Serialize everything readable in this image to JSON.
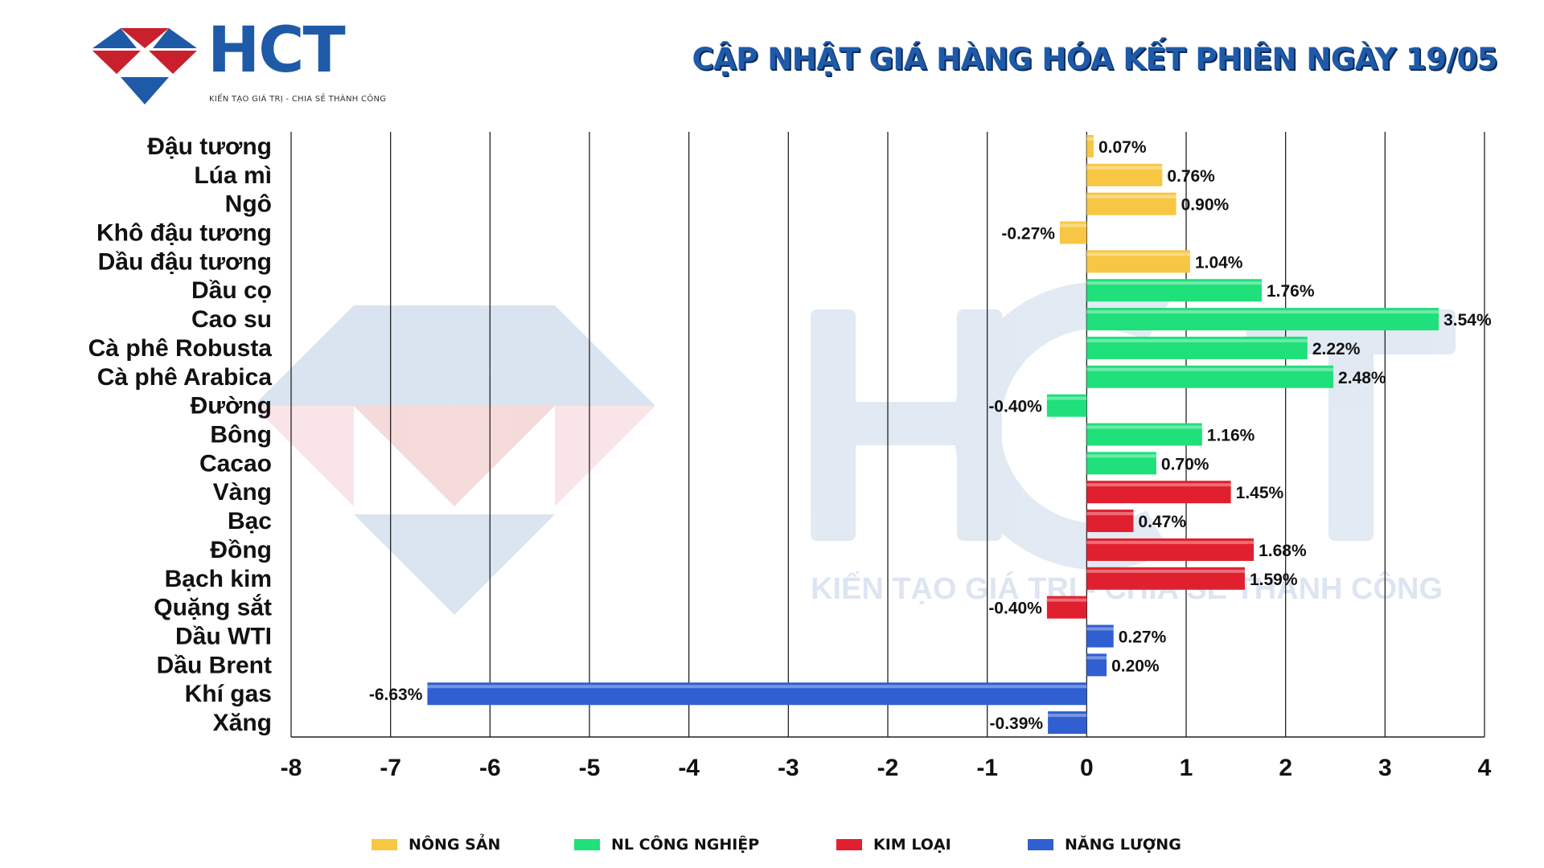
{
  "header": {
    "logo_text": "HCT",
    "logo_slogan": "KIẾN TẠO GIÁ TRỊ - CHIA SẺ THÀNH CÔNG",
    "title": "CẬP NHẬT GIÁ HÀNG HÓA KẾT PHIÊN NGÀY 19/05"
  },
  "watermark": {
    "text": "KIẾN TẠO GIÁ TRỊ - CHIA SẺ THÀNH CÔNG"
  },
  "colors": {
    "nong_san": "#f7c744",
    "nl_cong_nghiep": "#1fe07a",
    "kim_loai": "#e0202e",
    "nang_luong": "#2f5fd0",
    "brand_blue": "#1e5aa8",
    "brand_red": "#c8202c"
  },
  "chart_data": {
    "type": "bar",
    "orientation": "horizontal",
    "title": "CẬP NHẬT GIÁ HÀNG HÓA KẾT PHIÊN NGÀY 19/05",
    "xlim": [
      -8,
      4
    ],
    "xticks": [
      -8,
      -7,
      -6,
      -5,
      -4,
      -3,
      -2,
      -1,
      0,
      1,
      2,
      3,
      4
    ],
    "grid": "vertical",
    "legend_position": "bottom",
    "categories": [
      "Đậu tương",
      "Lúa mì",
      "Ngô",
      "Khô đậu tương",
      "Dầu đậu tương",
      "Dầu cọ",
      "Cao su",
      "Cà phê Robusta",
      "Cà phê Arabica",
      "Đường",
      "Bông",
      "Cacao",
      "Vàng",
      "Bạc",
      "Đồng",
      "Bạch kim",
      "Quặng sắt",
      "Dầu WTI",
      "Dầu Brent",
      "Khí gas",
      "Xăng"
    ],
    "values": [
      0.07,
      0.76,
      0.9,
      -0.27,
      1.04,
      1.76,
      3.54,
      2.22,
      2.48,
      -0.4,
      1.16,
      0.7,
      1.45,
      0.47,
      1.68,
      1.59,
      -0.4,
      0.27,
      0.2,
      -6.63,
      -0.39
    ],
    "labels": [
      "0.07%",
      "0.76%",
      "0.90%",
      "-0.27%",
      "1.04%",
      "1.76%",
      "3.54%",
      "2.22%",
      "2.48%",
      "-0.40%",
      "1.16%",
      "0.70%",
      "1.45%",
      "0.47%",
      "1.68%",
      "1.59%",
      "-0.40%",
      "0.27%",
      "0.20%",
      "-6.63%",
      "-0.39%"
    ],
    "groups": [
      "nong_san",
      "nong_san",
      "nong_san",
      "nong_san",
      "nong_san",
      "nl_cong_nghiep",
      "nl_cong_nghiep",
      "nl_cong_nghiep",
      "nl_cong_nghiep",
      "nl_cong_nghiep",
      "nl_cong_nghiep",
      "nl_cong_nghiep",
      "kim_loai",
      "kim_loai",
      "kim_loai",
      "kim_loai",
      "kim_loai",
      "nang_luong",
      "nang_luong",
      "nang_luong",
      "nang_luong"
    ],
    "legend": [
      {
        "key": "nong_san",
        "label": "NÔNG SẢN"
      },
      {
        "key": "nl_cong_nghiep",
        "label": "NL CÔNG NGHIỆP"
      },
      {
        "key": "kim_loai",
        "label": "KIM LOẠI"
      },
      {
        "key": "nang_luong",
        "label": "NĂNG LƯỢNG"
      }
    ]
  }
}
